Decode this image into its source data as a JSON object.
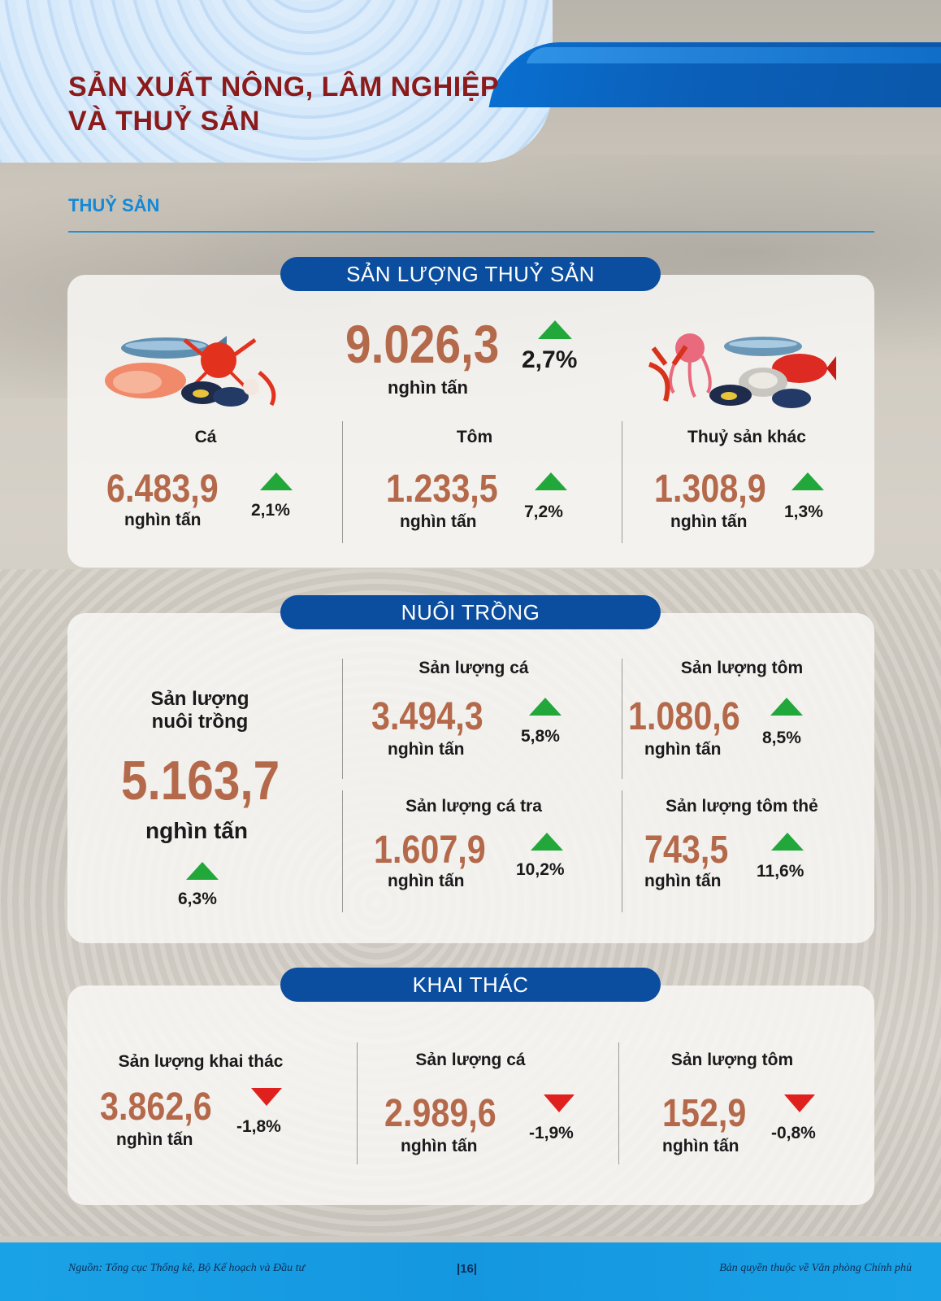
{
  "header": {
    "title_line1": "SẢN XUẤT NÔNG, LÂM NGHIỆP",
    "title_line2": "VÀ THUỶ SẢN"
  },
  "section": {
    "label": "THUỶ SẢN"
  },
  "total": {
    "heading": "SẢN LƯỢNG THUỶ SẢN",
    "value": "9.026,3",
    "unit": "nghìn tấn",
    "change": "2,7%",
    "trend": "up",
    "items": [
      {
        "label": "Cá",
        "value": "6.483,9",
        "unit": "nghìn tấn",
        "change": "2,1%",
        "trend": "up"
      },
      {
        "label": "Tôm",
        "value": "1.233,5",
        "unit": "nghìn tấn",
        "change": "7,2%",
        "trend": "up"
      },
      {
        "label": "Thuỷ sản khác",
        "value": "1.308,9",
        "unit": "nghìn tấn",
        "change": "1,3%",
        "trend": "up"
      }
    ]
  },
  "aquaculture": {
    "heading": "NUÔI TRỒNG",
    "main": {
      "label_line1": "Sản lượng",
      "label_line2": "nuôi trồng",
      "value": "5.163,7",
      "unit": "nghìn tấn",
      "change": "6,3%",
      "trend": "up"
    },
    "items": [
      {
        "label": "Sản lượng cá",
        "value": "3.494,3",
        "unit": "nghìn tấn",
        "change": "5,8%",
        "trend": "up"
      },
      {
        "label": "Sản lượng tôm",
        "value": "1.080,6",
        "unit": "nghìn tấn",
        "change": "8,5%",
        "trend": "up"
      },
      {
        "label": "Sản lượng cá tra",
        "value": "1.607,9",
        "unit": "nghìn tấn",
        "change": "10,2%",
        "trend": "up"
      },
      {
        "label": "Sản lượng tôm thẻ",
        "value": "743,5",
        "unit": "nghìn tấn",
        "change": "11,6%",
        "trend": "up"
      }
    ]
  },
  "capture": {
    "heading": "KHAI THÁC",
    "items": [
      {
        "label": "Sản lượng khai thác",
        "value": "3.862,6",
        "unit": "nghìn tấn",
        "change": "-1,8%",
        "trend": "down"
      },
      {
        "label": "Sản lượng cá",
        "value": "2.989,6",
        "unit": "nghìn tấn",
        "change": "-1,9%",
        "trend": "down"
      },
      {
        "label": "Sản lượng tôm",
        "value": "152,9",
        "unit": "nghìn tấn",
        "change": "-0,8%",
        "trend": "down"
      }
    ]
  },
  "footer": {
    "source": "Nguồn: Tổng cục Thống kê, Bộ Kế hoạch và Đầu tư",
    "page": "|16|",
    "copyright": "Bản quyền thuộc về Văn phòng Chính phủ"
  },
  "colors": {
    "title": "#8b1a1a",
    "accent_blue": "#0b4e9f",
    "number": "#b5694b",
    "up": "#22a83a",
    "down": "#e0201c"
  },
  "icons": [
    "seafood-left-illustration",
    "seafood-right-illustration",
    "triangle-up-icon",
    "triangle-down-icon"
  ]
}
